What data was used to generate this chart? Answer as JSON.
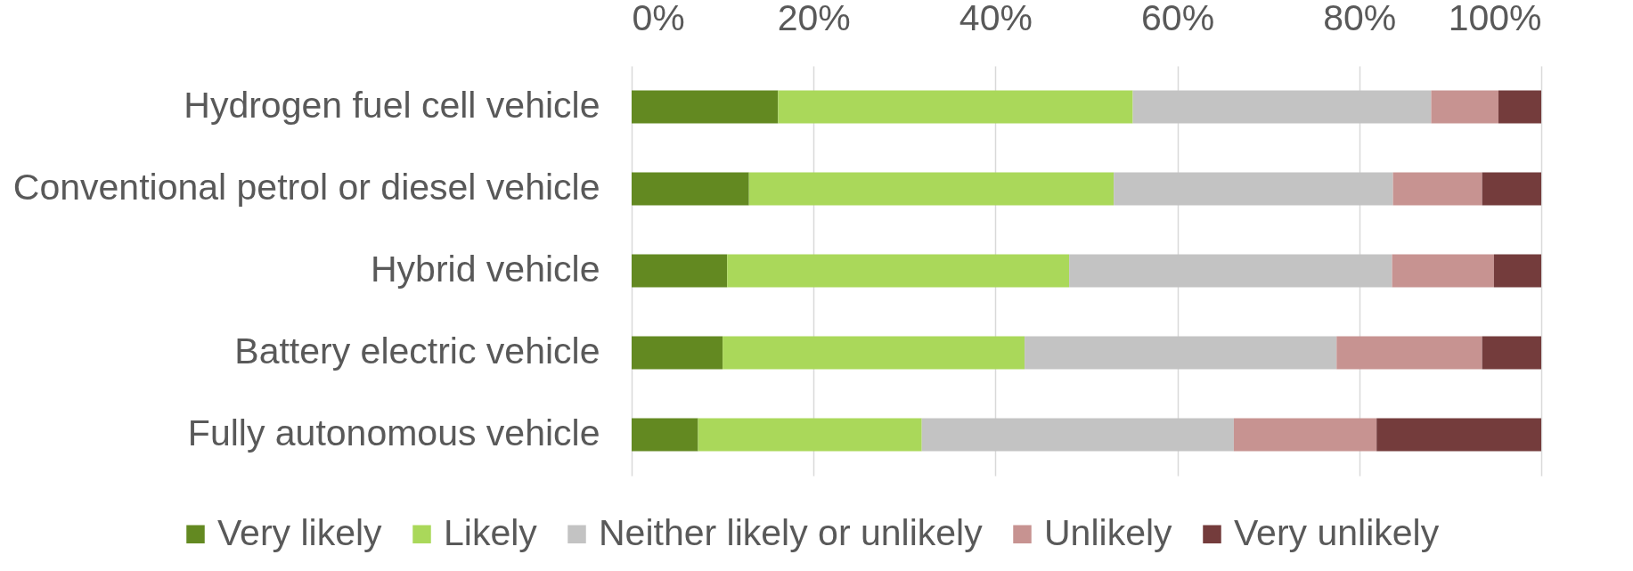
{
  "chart_data": {
    "type": "bar",
    "orientation": "horizontal",
    "stacked": true,
    "categories": [
      "Hydrogen fuel cell vehicle",
      "Conventional petrol or diesel vehicle",
      "Hybrid vehicle",
      "Battery electric vehicle",
      "Fully autonomous vehicle"
    ],
    "series": [
      {
        "name": "Very likely",
        "color": "#638921",
        "values": [
          16.1,
          12.9,
          10.5,
          10.0,
          7.3
        ]
      },
      {
        "name": "Likely",
        "color": "#aad85a",
        "values": [
          39.0,
          40.1,
          37.6,
          33.2,
          24.6
        ]
      },
      {
        "name": "Neither likely or unlikely",
        "color": "#c3c3c3",
        "values": [
          32.8,
          30.7,
          35.5,
          34.3,
          34.3
        ]
      },
      {
        "name": "Unlikely",
        "color": "#c79391",
        "values": [
          7.4,
          9.8,
          11.2,
          16.0,
          15.7
        ]
      },
      {
        "name": "Very unlikely",
        "color": "#743c3c",
        "values": [
          4.7,
          6.5,
          5.2,
          6.5,
          18.1
        ]
      }
    ],
    "xlim": [
      0,
      100
    ],
    "xticks": [
      {
        "value": 0,
        "label": "0%"
      },
      {
        "value": 20,
        "label": "20%"
      },
      {
        "value": 40,
        "label": "40%"
      },
      {
        "value": 60,
        "label": "60%"
      },
      {
        "value": 80,
        "label": "80%"
      },
      {
        "value": 100,
        "label": "100%"
      }
    ],
    "grid": "x",
    "legend": "bottom"
  }
}
